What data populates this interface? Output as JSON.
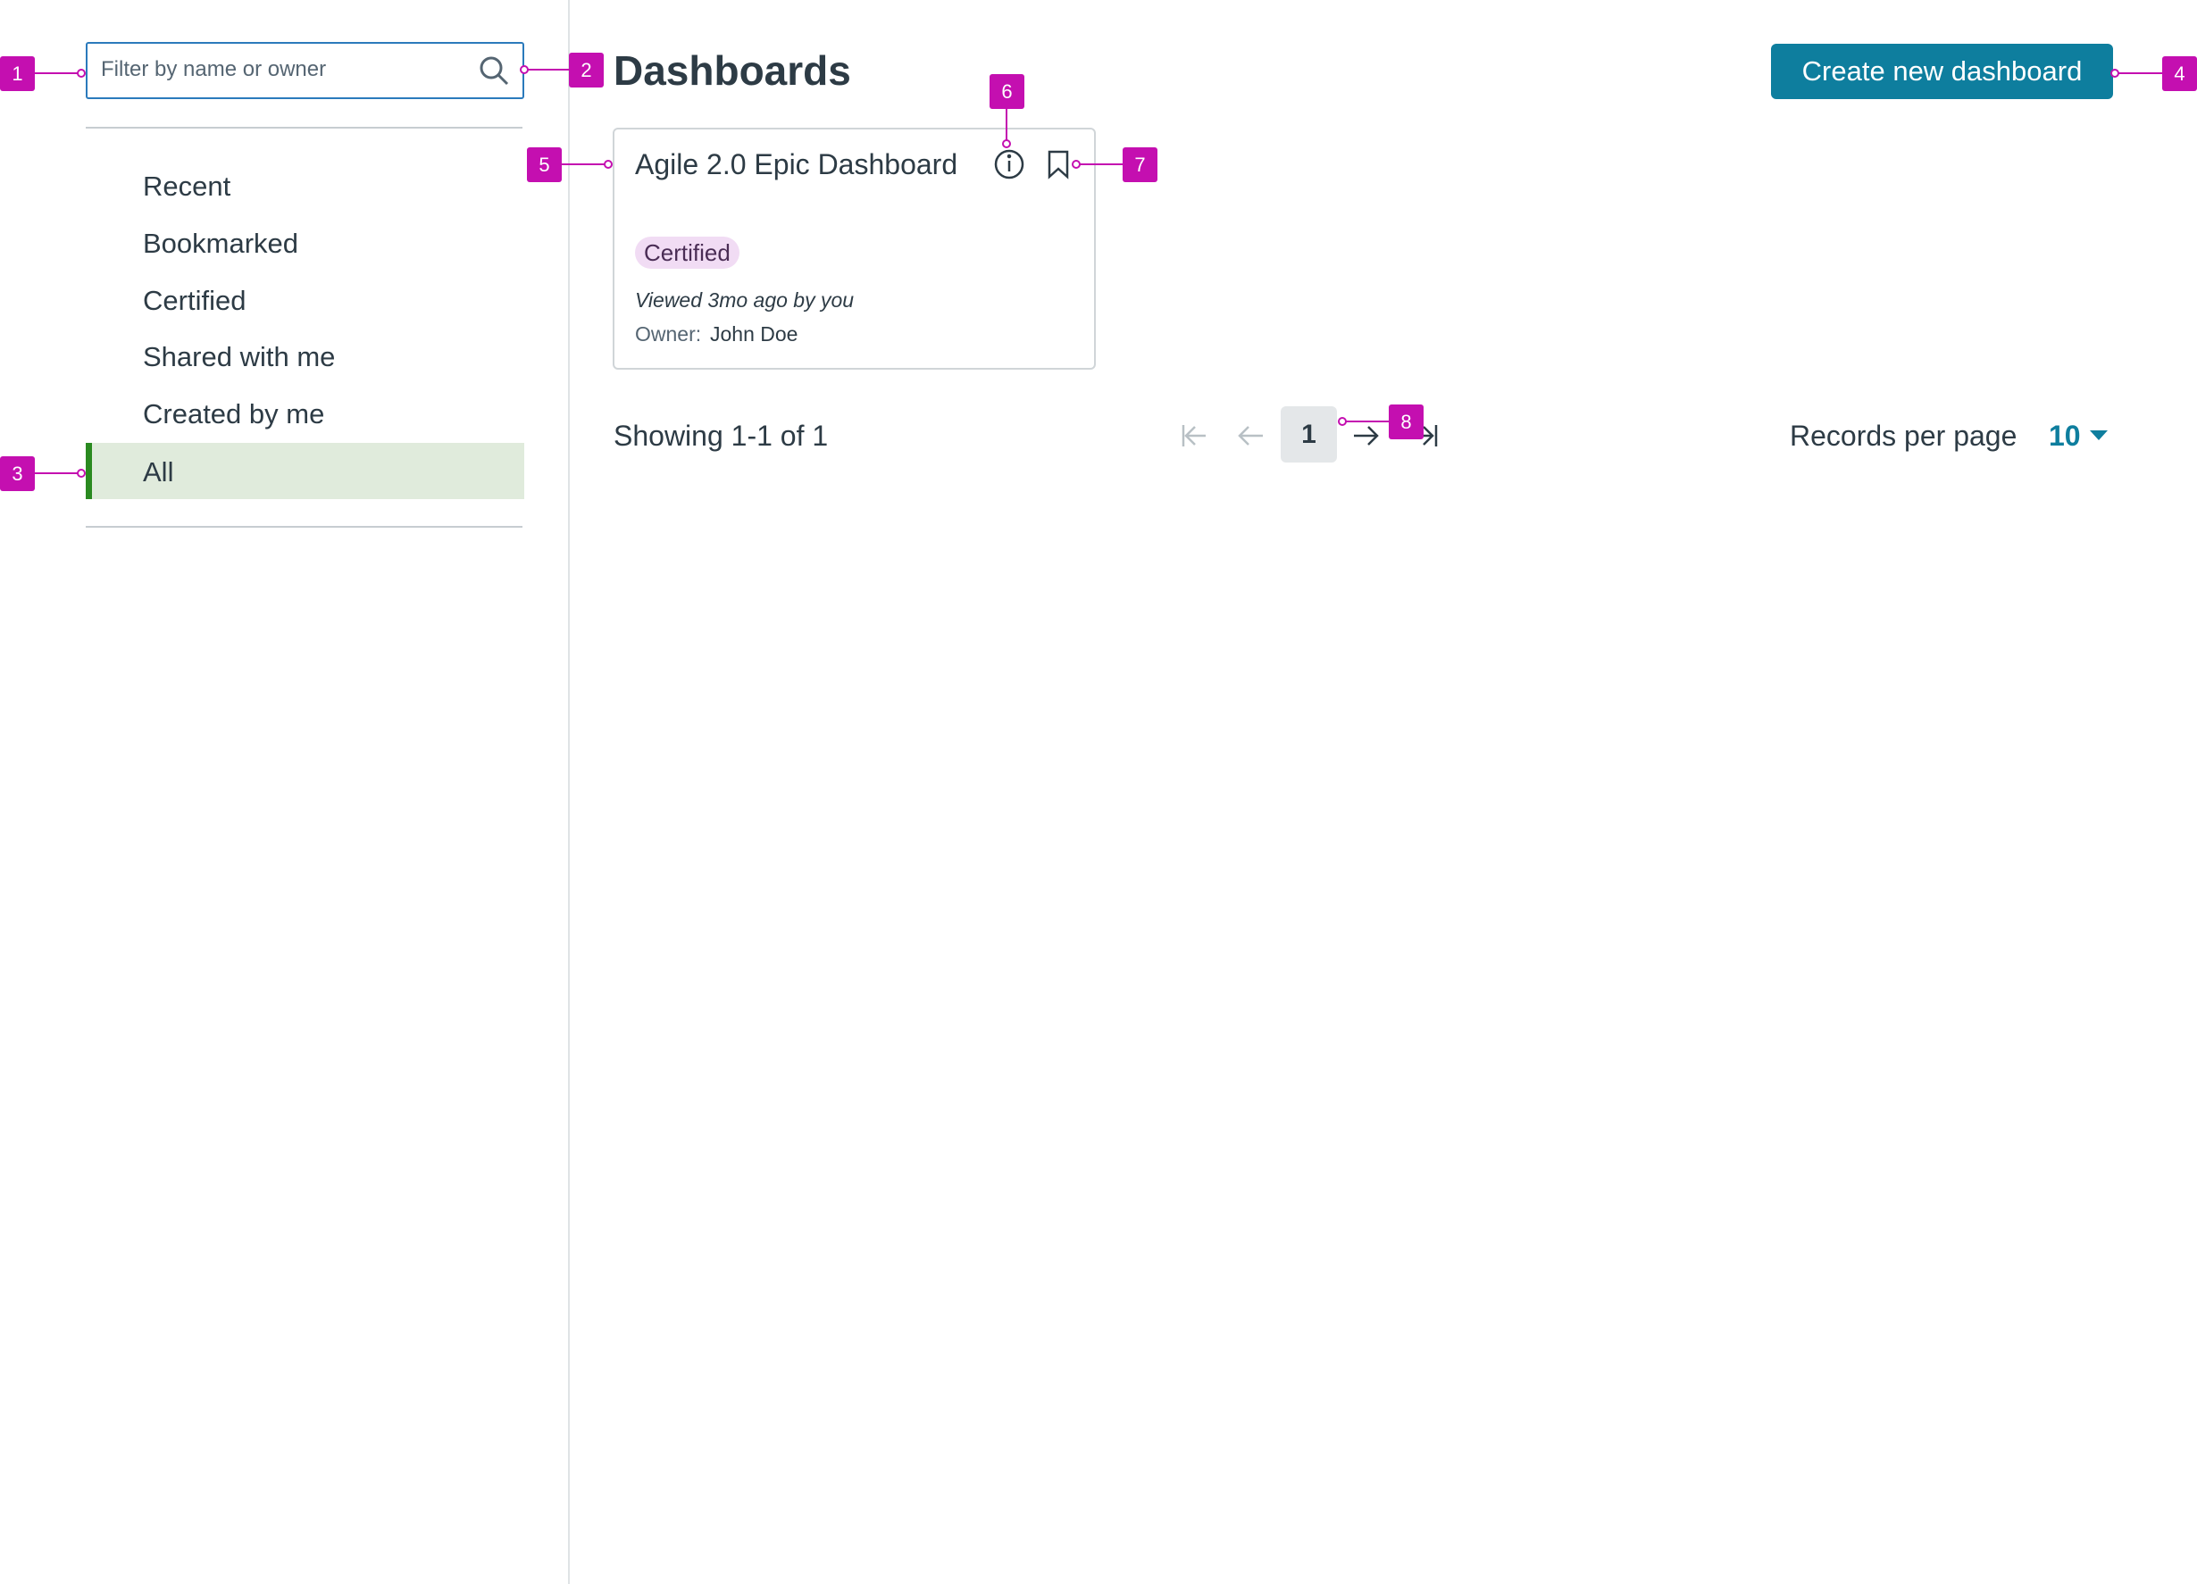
{
  "search": {
    "placeholder": "Filter by name or owner"
  },
  "nav": {
    "items": [
      "Recent",
      "Bookmarked",
      "Certified",
      "Shared with me",
      "Created by me",
      "All"
    ]
  },
  "header": {
    "title": "Dashboards",
    "button": "Create new dashboard"
  },
  "card": {
    "title": "Agile 2.0 Epic Dashboard",
    "tag": "Certified",
    "viewed": "Viewed 3mo ago by you",
    "owner_label": "Owner:",
    "owner": "John Doe"
  },
  "pagination": {
    "showing": "Showing 1-1 of 1",
    "page": "1",
    "records_label": "Records per page",
    "records_value": "10"
  },
  "annotations": [
    "1",
    "2",
    "3",
    "4",
    "5",
    "6",
    "7",
    "8"
  ]
}
